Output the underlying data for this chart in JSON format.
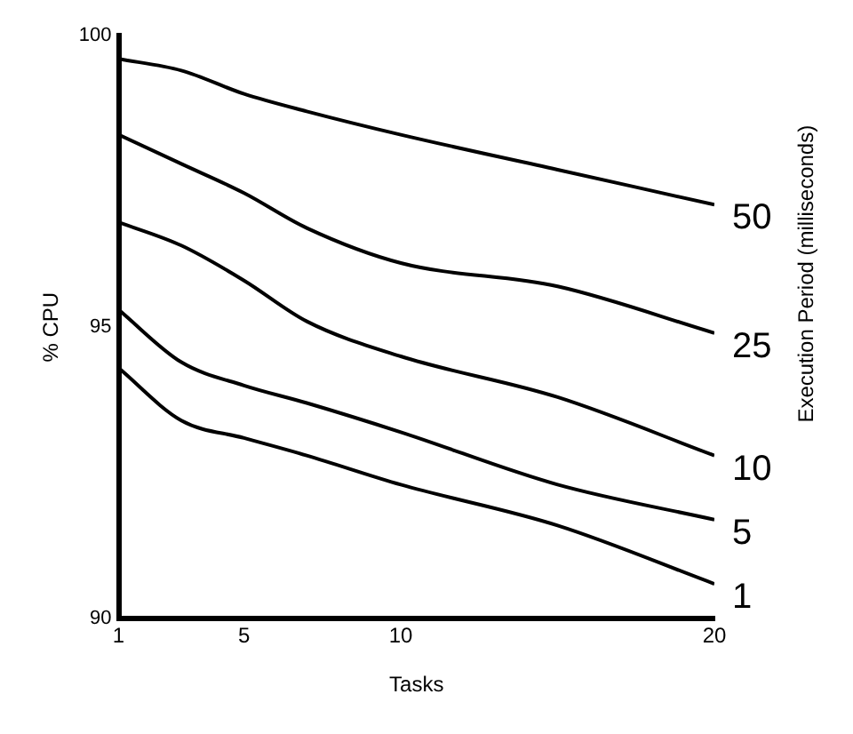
{
  "chart_data": {
    "type": "line",
    "xlabel": "Tasks",
    "ylabel": "% CPU",
    "legend_title": "Execution Period (milliseconds)",
    "x": [
      1,
      3,
      5,
      7,
      10,
      15,
      20
    ],
    "xlim": [
      1,
      20
    ],
    "xticks": [
      1,
      5,
      10,
      20
    ],
    "ylim": [
      90,
      100
    ],
    "yticks": [
      90,
      95,
      100
    ],
    "marker": "none",
    "line_style": "solid",
    "series": [
      {
        "name": "50",
        "color": "#000000",
        "values": [
          99.6,
          99.4,
          99.0,
          98.7,
          98.3,
          97.7,
          97.1
        ]
      },
      {
        "name": "25",
        "color": "#000000",
        "values": [
          98.3,
          97.8,
          97.3,
          96.7,
          96.1,
          95.7,
          94.9
        ]
      },
      {
        "name": "10",
        "color": "#000000",
        "values": [
          96.8,
          96.4,
          95.8,
          95.1,
          94.5,
          93.8,
          92.8
        ]
      },
      {
        "name": "5",
        "color": "#000000",
        "values": [
          95.3,
          94.4,
          94.0,
          93.7,
          93.2,
          92.3,
          91.7
        ]
      },
      {
        "name": "1",
        "color": "#000000",
        "values": [
          94.3,
          93.4,
          93.1,
          92.8,
          92.3,
          91.6,
          90.6
        ]
      }
    ]
  }
}
